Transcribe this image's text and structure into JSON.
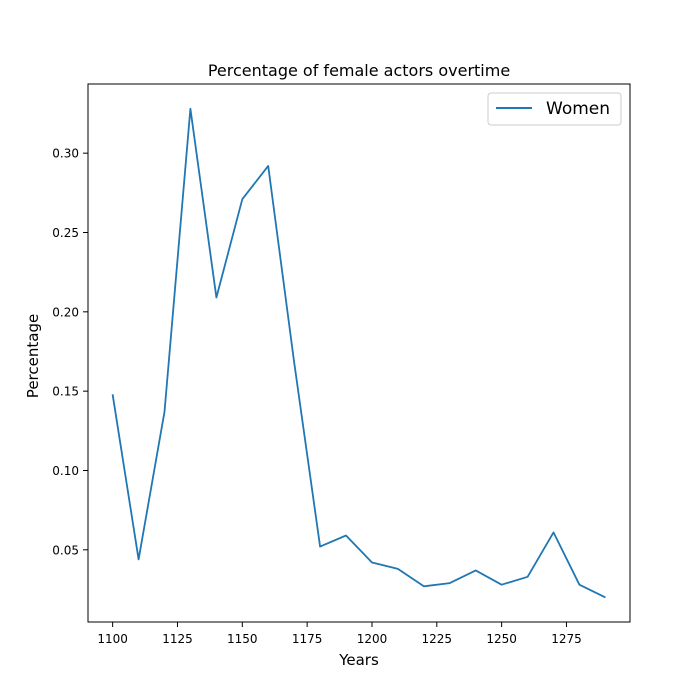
{
  "chart_data": {
    "type": "line",
    "title": "Percentage of female actors overtime",
    "xlabel": "Years",
    "ylabel": "Percentage",
    "xlim": [
      1090.5,
      1299.5
    ],
    "ylim": [
      0.0045,
      0.3436
    ],
    "xticks": [
      1100,
      1125,
      1150,
      1175,
      1200,
      1225,
      1250,
      1275
    ],
    "yticks": [
      0.05,
      0.1,
      0.15,
      0.2,
      0.25,
      0.3
    ],
    "ytick_labels": [
      "0.05",
      "0.10",
      "0.15",
      "0.20",
      "0.25",
      "0.30"
    ],
    "grid": false,
    "legend": {
      "position": "top-right",
      "entries": [
        "Women"
      ]
    },
    "series": [
      {
        "name": "Women",
        "color": "#1f77b4",
        "x": [
          1100,
          1110,
          1120,
          1130,
          1140,
          1150,
          1160,
          1170,
          1180,
          1190,
          1200,
          1210,
          1220,
          1230,
          1240,
          1250,
          1260,
          1270,
          1280,
          1290
        ],
        "y": [
          0.148,
          0.044,
          0.137,
          0.328,
          0.209,
          0.271,
          0.292,
          0.168,
          0.052,
          0.059,
          0.042,
          0.038,
          0.027,
          0.029,
          0.037,
          0.028,
          0.033,
          0.061,
          0.028,
          0.02
        ]
      }
    ]
  }
}
